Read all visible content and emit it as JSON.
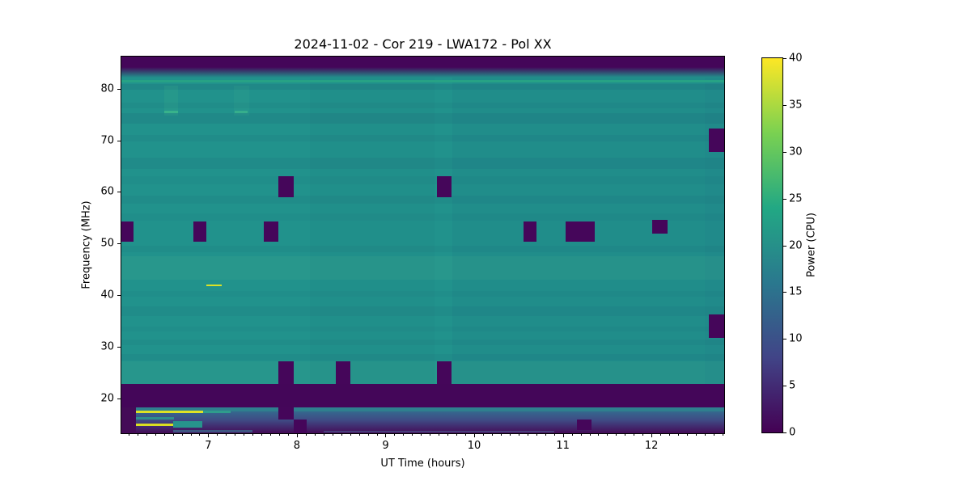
{
  "figure": {
    "title": "2024-11-02 - Cor 219 - LWA172 - Pol XX"
  },
  "chart_data": {
    "type": "heatmap",
    "title": "2024-11-02 - Cor 219 - LWA172 - Pol XX",
    "xlabel": "UT Time (hours)",
    "ylabel": "Frequency (MHz)",
    "xlim": [
      6.02,
      12.82
    ],
    "ylim": [
      13.3,
      86.2
    ],
    "xticks": [
      7,
      8,
      9,
      10,
      11,
      12
    ],
    "xminor_step": 0.1,
    "yticks": [
      20,
      30,
      40,
      50,
      60,
      70,
      80
    ],
    "grid": false,
    "colormap": "viridis",
    "background_power": 21,
    "dropout_power": 0,
    "base_color": "#21928c",
    "dropout_color": "#45065a",
    "colorbar": {
      "label": "Power (CPU)",
      "vmin": 0,
      "vmax": 40,
      "ticks": [
        0,
        5,
        10,
        15,
        20,
        25,
        30,
        35,
        40
      ],
      "gradient": [
        "#440154",
        "#414487",
        "#2a788e",
        "#22a884",
        "#7ad151",
        "#fde725"
      ]
    },
    "layers": [
      {
        "name": "background",
        "f0": 13.3,
        "f1": 86.2,
        "c": "#21928c",
        "power": 21
      },
      {
        "name": "h-stripe",
        "f0": 79.8,
        "f1": 80.9,
        "c": "rgba(25,50,100,0.10)"
      },
      {
        "name": "h-stripe",
        "f0": 76.2,
        "f1": 77.3,
        "c": "rgba(25,50,100,0.05)"
      },
      {
        "name": "h-stripe",
        "f0": 73.2,
        "f1": 75.3,
        "c": "rgba(25,50,100,0.09)"
      },
      {
        "name": "h-stripe",
        "f0": 69.8,
        "f1": 71.0,
        "c": "rgba(25,50,100,0.06)"
      },
      {
        "name": "h-stripe",
        "f0": 64.4,
        "f1": 66.6,
        "c": "rgba(25,50,100,0.07)"
      },
      {
        "name": "h-stripe",
        "f0": 61.5,
        "f1": 63.0,
        "c": "rgba(25,50,100,0.04)"
      },
      {
        "name": "h-stripe",
        "f0": 57.8,
        "f1": 59.3,
        "c": "rgba(25,50,100,0.06)"
      },
      {
        "name": "h-stripe",
        "f0": 54.5,
        "f1": 55.8,
        "c": "rgba(25,50,100,0.04)"
      },
      {
        "name": "h-stripe",
        "f0": 48.4,
        "f1": 49.6,
        "c": "rgba(25,50,100,0.05)"
      },
      {
        "name": "h-stripe",
        "f0": 43.0,
        "f1": 47.5,
        "c": "rgba(150,230,150,0.06)"
      },
      {
        "name": "h-stripe",
        "f0": 39.8,
        "f1": 40.8,
        "c": "rgba(25,50,100,0.04)"
      },
      {
        "name": "h-stripe",
        "f0": 36.0,
        "f1": 37.8,
        "c": "rgba(25,50,100,0.06)"
      },
      {
        "name": "h-stripe",
        "f0": 33.0,
        "f1": 34.0,
        "c": "rgba(25,50,100,0.04)"
      },
      {
        "name": "h-stripe",
        "f0": 30.4,
        "f1": 31.4,
        "c": "rgba(25,50,100,0.05)"
      },
      {
        "name": "h-stripe",
        "f0": 27.4,
        "f1": 28.6,
        "c": "rgba(25,50,100,0.06)"
      },
      {
        "name": "h-stripe",
        "f0": 22.8,
        "f1": 27.3,
        "c": "rgba(150,230,150,0.05)"
      },
      {
        "name": "v-tint",
        "t0": 8.15,
        "t1": 9.55,
        "f0": 13.3,
        "f1": 86.2,
        "c": "rgba(20,50,110,0.03)"
      },
      {
        "name": "v-tint",
        "t0": 9.75,
        "t1": 12.6,
        "f0": 13.3,
        "f1": 86.2,
        "c": "rgba(20,50,110,0.05)"
      },
      {
        "name": "v-tint",
        "t0": 12.6,
        "t1": 12.82,
        "f0": 18.3,
        "f1": 86.2,
        "c": "rgba(20,50,110,0.08)"
      },
      {
        "name": "top-dark-band",
        "f0": 84.2,
        "f1": 86.2,
        "c": "#440659",
        "power": 0
      },
      {
        "name": "top-gradient",
        "f0": 82.2,
        "f1": 84.2,
        "g": [
          "#440659",
          "#21928c"
        ]
      },
      {
        "name": "bright-line-81mhz",
        "f0": 81.2,
        "f1": 81.7,
        "c": "#27a285"
      },
      {
        "name": "faint-smudge",
        "t0": 6.5,
        "t1": 6.66,
        "f0": 74.8,
        "f1": 80.6,
        "c": "rgba(90,210,140,0.10)"
      },
      {
        "name": "faint-smudge-dash",
        "t0": 6.5,
        "t1": 6.66,
        "f0": 75.2,
        "f1": 75.7,
        "c": "rgba(80,210,140,0.45)"
      },
      {
        "name": "faint-smudge",
        "t0": 7.29,
        "t1": 7.46,
        "f0": 74.8,
        "f1": 80.6,
        "c": "rgba(90,210,140,0.08)"
      },
      {
        "name": "faint-smudge-dash",
        "t0": 7.3,
        "t1": 7.44,
        "f0": 75.2,
        "f1": 75.7,
        "c": "rgba(80,210,140,0.40)"
      },
      {
        "name": "bright-streak-42mhz",
        "t0": 6.98,
        "t1": 7.15,
        "f0": 41.75,
        "f1": 42.15,
        "c": "#dce226",
        "power": 37
      },
      {
        "name": "bottom-dark-band",
        "f0": 18.3,
        "f1": 22.8,
        "c": "#440659",
        "power": 0
      },
      {
        "name": "ionospheric-band-top",
        "f0": 17.6,
        "f1": 18.3,
        "c": "#2f7f8e"
      },
      {
        "name": "ionospheric-band-mid",
        "f0": 15.8,
        "f1": 17.6,
        "g": [
          "#34688e",
          "#3f4a84"
        ]
      },
      {
        "name": "ionospheric-band-low",
        "f0": 13.3,
        "f1": 15.8,
        "g": [
          "#3f4a84",
          "#440b57"
        ]
      },
      {
        "name": "bottom-left-dark-corner",
        "t0": 6.02,
        "t1": 6.18,
        "f0": 13.3,
        "f1": 18.3,
        "c": "#440b57",
        "power": 0
      },
      {
        "name": "yellow-streak-17mhz",
        "t0": 6.18,
        "t1": 6.94,
        "f0": 17.25,
        "f1": 17.65,
        "c": "#dfe226",
        "power": 38
      },
      {
        "name": "teal-streak-17mhz",
        "t0": 6.94,
        "t1": 7.25,
        "f0": 17.25,
        "f1": 17.65,
        "c": "#2f9c8c"
      },
      {
        "name": "teal-dash-16mhz",
        "t0": 6.18,
        "t1": 6.61,
        "f0": 16.0,
        "f1": 16.45,
        "c": "#2e8e8e"
      },
      {
        "name": "yellow-streak-15mhz",
        "t0": 6.18,
        "t1": 6.6,
        "f0": 14.75,
        "f1": 15.15,
        "c": "#d9e021",
        "power": 37
      },
      {
        "name": "teal-block-15mhz",
        "t0": 6.6,
        "t1": 6.93,
        "f0": 14.4,
        "f1": 15.6,
        "c": "#27948c"
      },
      {
        "name": "faint-line-14mhz",
        "t0": 6.6,
        "t1": 7.5,
        "f0": 13.5,
        "f1": 13.9,
        "c": "rgba(60,140,160,0.55)"
      },
      {
        "name": "faint-line-14mhz",
        "t0": 8.3,
        "t1": 10.9,
        "f0": 13.45,
        "f1": 13.75,
        "c": "rgba(80,130,170,0.40)"
      },
      {
        "name": "dropout",
        "t0": 6.02,
        "t1": 6.16,
        "f0": 50.3,
        "f1": 54.3,
        "c": "#45065a",
        "power": 0
      },
      {
        "name": "dropout",
        "t0": 6.83,
        "t1": 6.98,
        "f0": 50.3,
        "f1": 54.3,
        "c": "#45065a",
        "power": 0
      },
      {
        "name": "dropout",
        "t0": 7.63,
        "t1": 7.79,
        "f0": 50.3,
        "f1": 54.3,
        "c": "#45065a",
        "power": 0
      },
      {
        "name": "dropout",
        "t0": 7.79,
        "t1": 7.96,
        "f0": 59.0,
        "f1": 63.1,
        "c": "#45065a",
        "power": 0
      },
      {
        "name": "dropout",
        "t0": 7.79,
        "t1": 7.96,
        "f0": 22.8,
        "f1": 27.3,
        "c": "#45065a",
        "power": 0
      },
      {
        "name": "dropout",
        "t0": 7.79,
        "t1": 7.96,
        "f0": 15.9,
        "f1": 18.3,
        "c": "#45065a",
        "power": 0
      },
      {
        "name": "dropout",
        "t0": 7.96,
        "t1": 8.11,
        "f0": 13.3,
        "f1": 15.9,
        "c": "#45065a",
        "power": 0
      },
      {
        "name": "dropout",
        "t0": 8.44,
        "t1": 8.6,
        "f0": 22.8,
        "f1": 27.3,
        "c": "#45065a",
        "power": 0
      },
      {
        "name": "dropout",
        "t0": 9.58,
        "t1": 9.74,
        "f0": 59.0,
        "f1": 63.1,
        "c": "#45065a",
        "power": 0
      },
      {
        "name": "dropout",
        "t0": 9.58,
        "t1": 9.74,
        "f0": 22.8,
        "f1": 27.3,
        "c": "#45065a",
        "power": 0
      },
      {
        "name": "dropout",
        "t0": 10.56,
        "t1": 10.7,
        "f0": 50.3,
        "f1": 54.3,
        "c": "#45065a",
        "power": 0
      },
      {
        "name": "dropout",
        "t0": 11.03,
        "t1": 11.36,
        "f0": 50.3,
        "f1": 54.3,
        "c": "#45065a",
        "power": 0
      },
      {
        "name": "dropout",
        "t0": 11.16,
        "t1": 11.32,
        "f0": 13.9,
        "f1": 15.9,
        "c": "#45065a",
        "power": 0
      },
      {
        "name": "dropout",
        "t0": 12.01,
        "t1": 12.18,
        "f0": 52.0,
        "f1": 54.6,
        "c": "#45065a",
        "power": 0
      },
      {
        "name": "dropout",
        "t0": 12.65,
        "t1": 12.82,
        "f0": 67.7,
        "f1": 72.2,
        "c": "#45065a",
        "power": 0
      },
      {
        "name": "dropout",
        "t0": 12.65,
        "t1": 12.82,
        "f0": 31.7,
        "f1": 36.3,
        "c": "#45065a",
        "power": 0
      }
    ]
  }
}
